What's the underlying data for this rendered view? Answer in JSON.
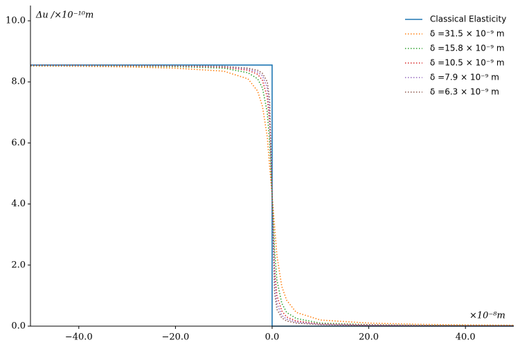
{
  "chart_data": {
    "type": "line",
    "y_label": "Δu /×10⁻¹⁰m",
    "x_label": "×10⁻⁸m",
    "xlim": [
      -50,
      50
    ],
    "ylim": [
      0,
      10.5
    ],
    "xticks": [
      {
        "value": -40,
        "label": "−40.0"
      },
      {
        "value": -20,
        "label": "−20.0"
      },
      {
        "value": 0,
        "label": "0.0"
      },
      {
        "value": 20,
        "label": "20.0"
      },
      {
        "value": 40,
        "label": "40.0"
      }
    ],
    "yticks": [
      {
        "value": 0,
        "label": "0.0"
      },
      {
        "value": 2,
        "label": "2.0"
      },
      {
        "value": 4,
        "label": "4.0"
      },
      {
        "value": 6,
        "label": "6.0"
      },
      {
        "value": 8,
        "label": "8.0"
      },
      {
        "value": 10,
        "label": "10.0"
      }
    ],
    "legend": "upper right",
    "series": [
      {
        "name": "Classical Elasticity",
        "color": "#1f77b4",
        "style": "solid",
        "x": [
          -50,
          0,
          0,
          50
        ],
        "values": [
          8.55,
          8.55,
          0,
          0
        ]
      },
      {
        "name": "δ =31.5 × 10⁻⁹ m",
        "color": "#ff7f0e",
        "style": "dotted",
        "x": [
          -50,
          -40,
          -30,
          -20,
          -10,
          -5,
          -3,
          -2,
          -1,
          -0.5,
          0,
          0.5,
          1,
          2,
          3,
          5,
          10,
          20,
          30,
          40,
          50
        ],
        "values": [
          8.52,
          8.51,
          8.49,
          8.45,
          8.35,
          8.1,
          7.7,
          7.2,
          6.2,
          5.2,
          4.28,
          3.3,
          2.3,
          1.3,
          0.85,
          0.45,
          0.2,
          0.1,
          0.06,
          0.04,
          0.03
        ]
      },
      {
        "name": "δ =15.8 × 10⁻⁹ m",
        "color": "#2ca02c",
        "style": "dotted",
        "x": [
          -50,
          -40,
          -30,
          -20,
          -10,
          -5,
          -3,
          -2,
          -1,
          -0.5,
          0,
          0.5,
          1,
          2,
          3,
          5,
          10,
          20,
          30,
          40,
          50
        ],
        "values": [
          8.53,
          8.53,
          8.52,
          8.5,
          8.45,
          8.3,
          8.1,
          7.8,
          7.0,
          6.0,
          4.28,
          2.5,
          1.5,
          0.75,
          0.45,
          0.25,
          0.1,
          0.05,
          0.03,
          0.02,
          0.02
        ]
      },
      {
        "name": "δ =10.5 × 10⁻⁹ m",
        "color": "#d62728",
        "style": "dotted",
        "x": [
          -50,
          -40,
          -30,
          -20,
          -10,
          -5,
          -3,
          -2,
          -1,
          -0.5,
          0,
          0.5,
          1,
          2,
          3,
          5,
          10,
          20,
          30,
          40,
          50
        ],
        "values": [
          8.54,
          8.54,
          8.53,
          8.52,
          8.48,
          8.38,
          8.25,
          8.05,
          7.5,
          6.6,
          4.28,
          1.9,
          1.0,
          0.5,
          0.3,
          0.17,
          0.07,
          0.04,
          0.02,
          0.01,
          0.01
        ]
      },
      {
        "name": "δ =7.9 × 10⁻⁹ m",
        "color": "#9467bd",
        "style": "dotted",
        "x": [
          -50,
          -40,
          -30,
          -20,
          -10,
          -5,
          -3,
          -2,
          -1,
          -0.5,
          0,
          0.5,
          1,
          2,
          3,
          5,
          10,
          20,
          30,
          40,
          50
        ],
        "values": [
          8.55,
          8.54,
          8.54,
          8.53,
          8.5,
          8.42,
          8.32,
          8.2,
          7.8,
          7.0,
          4.28,
          1.5,
          0.75,
          0.35,
          0.23,
          0.13,
          0.06,
          0.03,
          0.02,
          0.01,
          0.01
        ]
      },
      {
        "name": "δ =6.3 × 10⁻⁹ m",
        "color": "#8c564b",
        "style": "dotted",
        "x": [
          -50,
          -40,
          -30,
          -20,
          -10,
          -5,
          -3,
          -2,
          -1,
          -0.5,
          0,
          0.5,
          1,
          2,
          3,
          5,
          10,
          20,
          30,
          40,
          50
        ],
        "values": [
          8.55,
          8.55,
          8.54,
          8.53,
          8.51,
          8.45,
          8.38,
          8.28,
          8.0,
          7.4,
          4.28,
          1.1,
          0.55,
          0.27,
          0.17,
          0.1,
          0.05,
          0.02,
          0.01,
          0.01,
          0.01
        ]
      }
    ]
  }
}
